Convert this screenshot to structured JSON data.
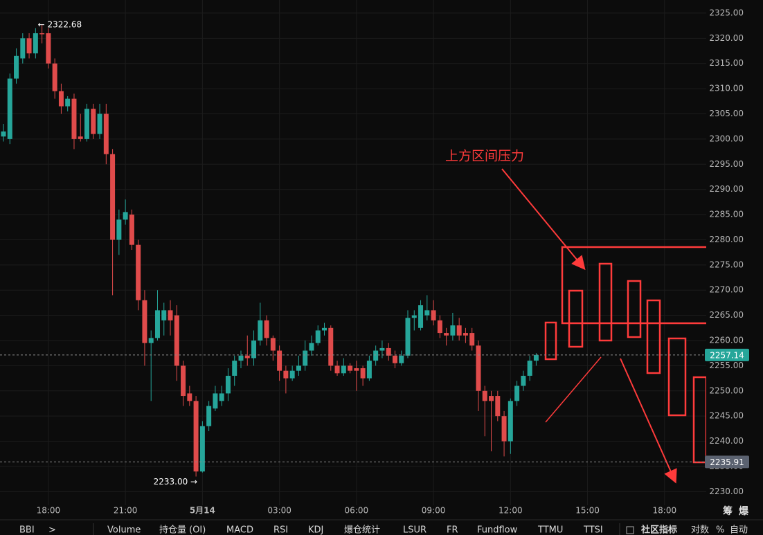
{
  "chart_data": {
    "type": "candlestick",
    "categories": [
      null,
      null,
      null,
      null,
      null,
      null,
      null,
      "18:00",
      null,
      null,
      null,
      null,
      null,
      null,
      null,
      null,
      null,
      null,
      null,
      "21:00",
      null,
      null,
      null,
      null,
      null,
      null,
      null,
      null,
      null,
      null,
      null,
      "5月14",
      null,
      null,
      null,
      null,
      null,
      null,
      null,
      null,
      null,
      null,
      null,
      "03:00",
      null,
      null,
      null,
      null,
      null,
      null,
      null,
      null,
      null,
      null,
      null,
      "06:00",
      null,
      null,
      null,
      null,
      null,
      null,
      null,
      null,
      null,
      null,
      null,
      "09:00",
      null,
      null,
      null,
      null,
      null,
      null,
      null,
      null,
      null,
      null,
      null,
      "12:00",
      null,
      null,
      null,
      null,
      null,
      null,
      null,
      null,
      null,
      null,
      null,
      "15:00",
      null,
      null,
      null,
      null,
      null,
      null,
      null,
      null,
      null,
      null,
      null,
      "18:00",
      null,
      null,
      null,
      null,
      null,
      null
    ],
    "open": [
      2300.5,
      2300,
      2312,
      2316,
      2320,
      2317,
      2321,
      2321,
      2315,
      2309.5,
      2306.5,
      2308,
      2300.5,
      2300,
      2306,
      2301,
      2305,
      2297,
      2280,
      2284,
      2285,
      2279,
      2268,
      2259.5,
      2260.5,
      2264,
      2266,
      2265,
      2255,
      2249.5,
      2248,
      2234,
      2243,
      2246.5,
      2248,
      2249.5,
      2253,
      2256,
      2257,
      2256.5,
      2260,
      2264,
      2260.5,
      2258,
      2254,
      2252.5,
      2254,
      2255,
      2258,
      2259.5,
      2262,
      2262.5,
      2255,
      2253.5,
      2255,
      2254.5,
      2254.5,
      2252.5,
      2256,
      2258,
      2258.5,
      2257,
      2255.5,
      2257,
      2264.5,
      2262.5,
      2265,
      2266,
      2264,
      2261.5,
      2261,
      2263,
      2261.5,
      2261.5,
      2259,
      2250,
      2249,
      2249,
      2245,
      2240,
      2248,
      2251,
      2253,
      2256,
      null,
      null,
      null,
      null,
      null,
      null,
      null,
      null,
      null,
      null,
      null,
      null,
      null,
      null,
      null,
      null,
      null,
      null,
      null,
      null,
      null,
      null,
      null,
      null,
      null,
      null
    ],
    "high": [
      2303,
      2313,
      2318,
      2321,
      2321,
      2322,
      2322.68,
      2322,
      2316,
      2311,
      2308.5,
      2309,
      2305,
      2307,
      2307,
      2307,
      2307,
      2298,
      2286,
      2288,
      2286,
      2280,
      2270,
      2262,
      2270,
      2267.5,
      2268,
      2267,
      2256,
      2251,
      2249,
      2244,
      2248,
      2251,
      2251,
      2254.5,
      2257,
      2258,
      2261,
      2262,
      2267.5,
      2265,
      2261,
      2259,
      2255,
      2255,
      2257,
      2260,
      2261,
      2263,
      2263.5,
      2263,
      2256,
      2256.5,
      2255.5,
      2256,
      2255,
      2257,
      2259,
      2260,
      2259.5,
      2258,
      2258,
      2266,
      2266,
      2268,
      2269,
      2268,
      2265,
      2262.5,
      2265.5,
      2264.5,
      2262.5,
      2262.5,
      2260,
      2251,
      2250,
      2250,
      2246,
      2248.5,
      2252,
      2254,
      2257,
      2257.5,
      null,
      null,
      null,
      null,
      null,
      null,
      null,
      null,
      null,
      null,
      null,
      null,
      null,
      null,
      null,
      null,
      null,
      null,
      null,
      null,
      null,
      null,
      null,
      null,
      null,
      null
    ],
    "low": [
      2299.5,
      2299,
      2311,
      2315,
      2316,
      2316,
      2319,
      2314,
      2308,
      2305,
      2305.5,
      2298,
      2299.5,
      2299.5,
      2300,
      2300,
      2295,
      2269,
      2277,
      2283,
      2278,
      2266,
      2255,
      2248,
      2260,
      2261,
      2261,
      2252,
      2247,
      2247,
      2233,
      2233.8,
      2242,
      2246,
      2247,
      2248,
      2251,
      2254.5,
      2255,
      2255,
      2259,
      2259,
      2256,
      2252,
      2249.5,
      2252,
      2253,
      2254,
      2257,
      2259,
      2261,
      2254,
      2253,
      2253,
      2253.5,
      2250,
      2251,
      2252,
      2255,
      2256.5,
      2256,
      2254.5,
      2255,
      2256.5,
      2262,
      2262,
      2264,
      2263,
      2260.5,
      2259,
      2260,
      2260,
      2259.5,
      2258,
      2246,
      2241,
      2238,
      2244,
      2237,
      2237.5,
      2247,
      2250,
      2252,
      2255,
      null,
      null,
      null,
      null,
      null,
      null,
      null,
      null,
      null,
      null,
      null,
      null,
      null,
      null,
      null,
      null,
      null,
      null,
      null,
      null,
      null,
      null,
      null,
      null,
      null,
      null
    ],
    "close": [
      2301.5,
      2312,
      2316.5,
      2320,
      2317,
      2321,
      2320.8,
      2315,
      2309.5,
      2306.5,
      2308,
      2300,
      2300,
      2306,
      2301,
      2305,
      2297,
      2280,
      2284,
      2285.5,
      2279,
      2268,
      2259.5,
      2260.5,
      2266,
      2266,
      2264,
      2255,
      2249,
      2248,
      2234,
      2243,
      2247,
      2249.5,
      2249.5,
      2253,
      2256,
      2257,
      2256.5,
      2260,
      2264,
      2260.5,
      2258,
      2254,
      2252.5,
      2254,
      2255,
      2258,
      2259.5,
      2262,
      2262.5,
      2255,
      2253.5,
      2255,
      2254,
      2254,
      2252.5,
      2256,
      2258,
      2258.5,
      2257,
      2255.5,
      2257,
      2264.5,
      2265,
      2267,
      2266,
      2264,
      2261.5,
      2261,
      2263,
      2261,
      2261,
      2259,
      2250,
      2248,
      2248,
      2245,
      2240,
      2248,
      2251,
      2253,
      2256,
      2257.14,
      null,
      null,
      null,
      null,
      null,
      null,
      null,
      null,
      null,
      null,
      null,
      null,
      null,
      null,
      null,
      null,
      null,
      null,
      null,
      null,
      null,
      null,
      null,
      null,
      null,
      null
    ],
    "up_color": "#26a69a",
    "down_color": "#e04b4b",
    "ylim": [
      2227.3,
      2327.6
    ],
    "yticks": [
      {
        "value": 2230,
        "label": "2230.00"
      },
      {
        "value": 2235,
        "label": "2235.00"
      },
      {
        "value": 2240,
        "label": "2240.00"
      },
      {
        "value": 2245,
        "label": "2245.00"
      },
      {
        "value": 2250,
        "label": "2250.00"
      },
      {
        "value": 2255,
        "label": "2255.00"
      },
      {
        "value": 2260,
        "label": "2260.00"
      },
      {
        "value": 2265,
        "label": "2265.00"
      },
      {
        "value": 2270,
        "label": "2270.00"
      },
      {
        "value": 2275,
        "label": "2275.00"
      },
      {
        "value": 2280,
        "label": "2280.00"
      },
      {
        "value": 2285,
        "label": "2285.00"
      },
      {
        "value": 2290,
        "label": "2290.00"
      },
      {
        "value": 2295,
        "label": "2295.00"
      },
      {
        "value": 2300,
        "label": "2300.00"
      },
      {
        "value": 2305,
        "label": "2305.00"
      },
      {
        "value": 2310,
        "label": "2310.00"
      },
      {
        "value": 2315,
        "label": "2315.00"
      },
      {
        "value": 2320,
        "label": "2320.00"
      },
      {
        "value": 2325,
        "label": "2325.00"
      }
    ],
    "grid": true,
    "high_marker": {
      "value": 2322.68,
      "label": "← 2322.68"
    },
    "low_marker": {
      "value": 2233,
      "label": "2233.00 →"
    },
    "last_price": 2257.14,
    "level_price": 2235.91,
    "annotation": "上方区间压力"
  },
  "toolbar": {
    "left": [
      "BBI",
      ">"
    ],
    "items": [
      "Volume",
      "持仓量 (OI)",
      "MACD",
      "RSI",
      "KDJ",
      "爆仓统计",
      "LSUR",
      "FR",
      "Fundflow",
      "TTMU",
      "TTSI"
    ],
    "right": [
      "社区指标",
      "对数",
      "%",
      "自动"
    ],
    "corner": [
      "筹",
      "爆"
    ]
  }
}
